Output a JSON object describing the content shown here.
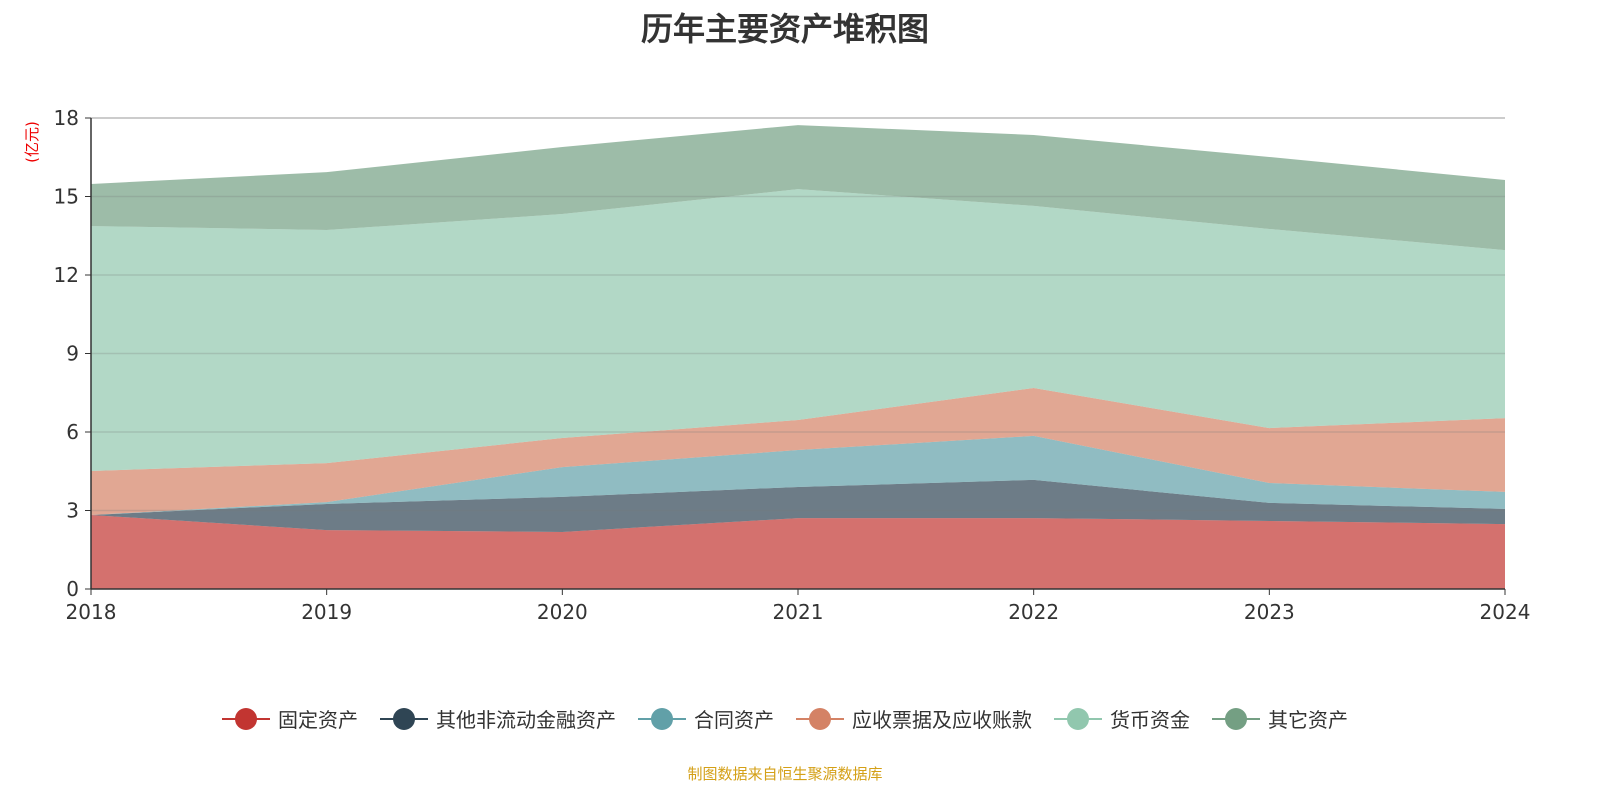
{
  "title": "历年主要资产堆积图",
  "footer": "制图数据来自恒生聚源数据库",
  "chart_data": {
    "type": "area",
    "stacked": true,
    "title": "历年主要资产堆积图",
    "ylabel": "(亿元)",
    "xlabel": "",
    "ylim": [
      0,
      18
    ],
    "yticks": [
      0,
      3,
      6,
      9,
      12,
      15,
      18
    ],
    "grid": true,
    "legend_position": "bottom",
    "categories": [
      "2018",
      "2019",
      "2020",
      "2021",
      "2022",
      "2023",
      "2024"
    ],
    "series": [
      {
        "name": "固定资产",
        "color": "#c23531",
        "values": [
          2.83,
          2.25,
          2.18,
          2.71,
          2.71,
          2.6,
          2.48
        ]
      },
      {
        "name": "其他非流动金融资产",
        "color": "#2f4554",
        "values": [
          0.0,
          1.0,
          1.34,
          1.19,
          1.46,
          0.69,
          0.58
        ]
      },
      {
        "name": "合同资产",
        "color": "#61a0a8",
        "values": [
          0.0,
          0.07,
          1.14,
          1.41,
          1.68,
          0.76,
          0.65
        ]
      },
      {
        "name": "应收票据及应收账款",
        "color": "#d48265",
        "values": [
          1.68,
          1.49,
          1.11,
          1.15,
          1.83,
          2.1,
          2.82
        ]
      },
      {
        "name": "货币资金",
        "color": "#91c7ae",
        "values": [
          9.36,
          8.91,
          8.56,
          8.82,
          6.96,
          7.61,
          6.42
        ]
      },
      {
        "name": "其它资产",
        "color": "#749f83",
        "values": [
          1.61,
          2.21,
          2.56,
          2.45,
          2.71,
          2.75,
          2.68
        ]
      }
    ]
  }
}
